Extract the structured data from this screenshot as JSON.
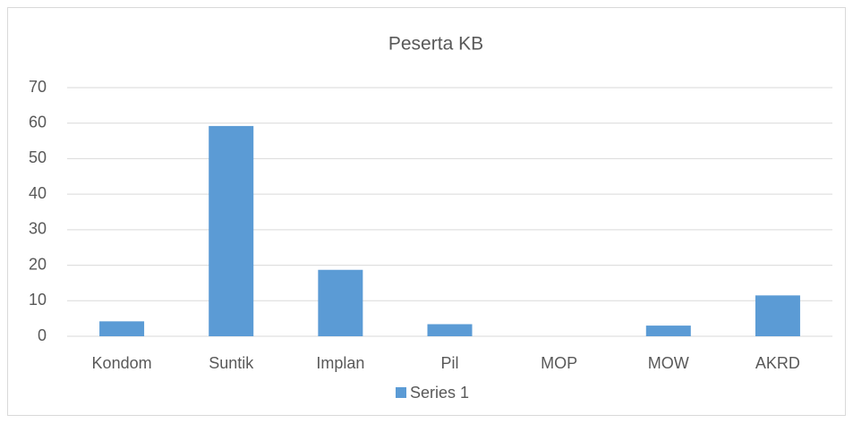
{
  "chart_data": {
    "type": "bar",
    "title": "Peserta KB",
    "categories": [
      "Kondom",
      "Suntik",
      "Implan",
      "Pil",
      "MOP",
      "MOW",
      "AKRD"
    ],
    "series": [
      {
        "name": "Series 1",
        "color": "#5b9bd5",
        "values": [
          4.2,
          59.2,
          18.7,
          3.4,
          0,
          3.0,
          11.5
        ]
      }
    ],
    "ylim": [
      0,
      70
    ],
    "yticks": [
      0,
      10,
      20,
      30,
      40,
      50,
      60,
      70
    ],
    "grid": true,
    "legend": "bottom"
  }
}
